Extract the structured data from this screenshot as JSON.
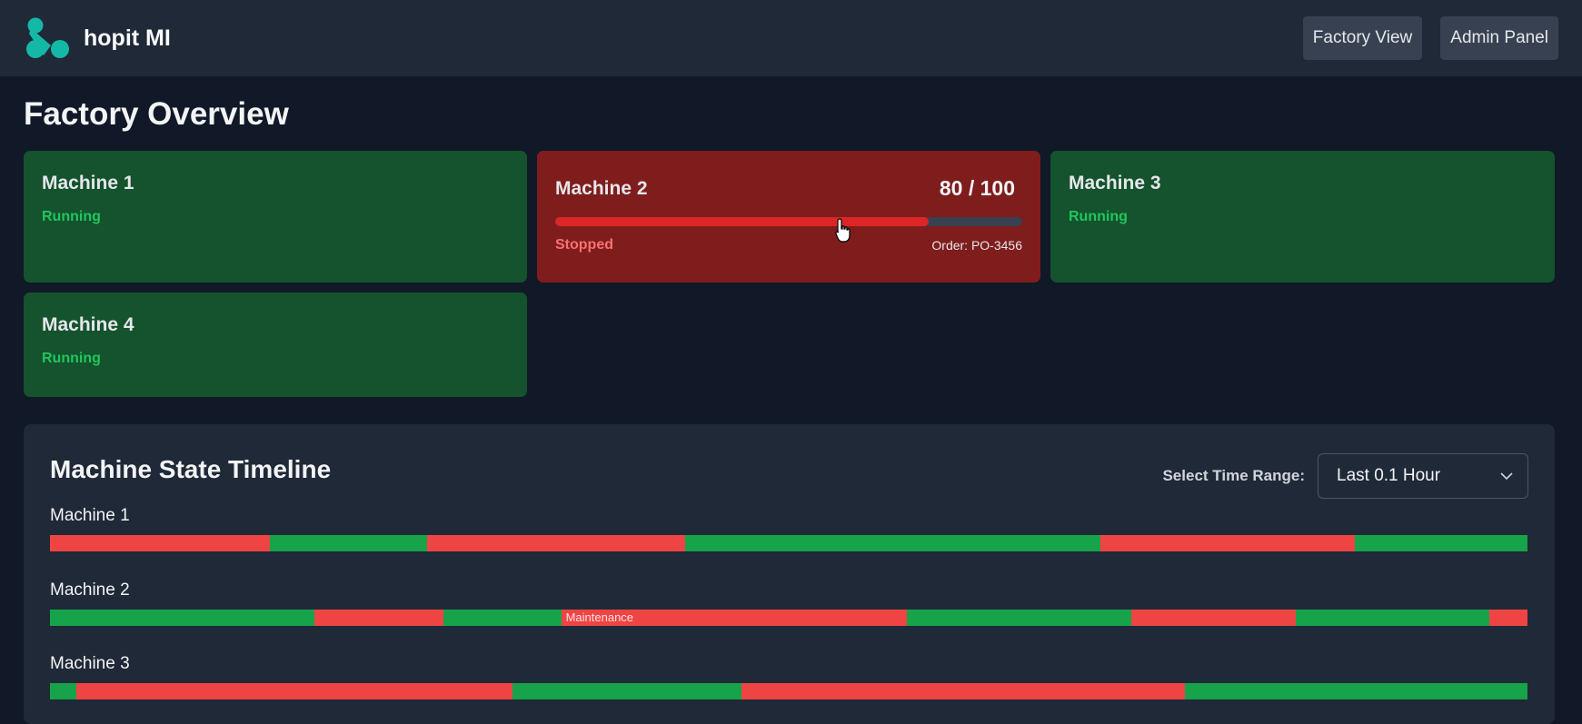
{
  "header": {
    "brand_name": "hopit MI",
    "logo_color": "#14b8a6",
    "nav": [
      {
        "label": "Factory View"
      },
      {
        "label": "Admin Panel"
      }
    ]
  },
  "page_title": "Factory Overview",
  "colors": {
    "running": "#14532d",
    "stopped": "#7f1d1d",
    "running_text": "#22c55e",
    "stopped_text": "#f87171",
    "segment_running": "#16a34a",
    "segment_stopped": "#ef4444"
  },
  "machines": [
    {
      "name": "Machine 1",
      "status": "Running"
    },
    {
      "name": "Machine 2",
      "status": "Stopped",
      "count": "80 / 100",
      "progress_pct": 80,
      "order": "Order: PO-3456"
    },
    {
      "name": "Machine 3",
      "status": "Running"
    },
    {
      "name": "Machine 4",
      "status": "Running"
    }
  ],
  "timeline": {
    "title": "Machine State Timeline",
    "range_label": "Select Time Range:",
    "range_value": "Last 0.1 Hour",
    "rows": [
      {
        "name": "Machine 1",
        "segments": [
          {
            "state": "stopped",
            "start": 0.0,
            "end": 0.149
          },
          {
            "state": "running",
            "start": 0.149,
            "end": 0.255
          },
          {
            "state": "stopped",
            "start": 0.255,
            "end": 0.43
          },
          {
            "state": "running",
            "start": 0.43,
            "end": 0.711
          },
          {
            "state": "stopped",
            "start": 0.711,
            "end": 0.883
          },
          {
            "state": "running",
            "start": 0.883,
            "end": 1.0
          }
        ]
      },
      {
        "name": "Machine 2",
        "segments": [
          {
            "state": "running",
            "start": 0.0,
            "end": 0.179
          },
          {
            "state": "stopped",
            "start": 0.179,
            "end": 0.266
          },
          {
            "state": "running",
            "start": 0.266,
            "end": 0.346
          },
          {
            "state": "stopped",
            "start": 0.346,
            "end": 0.58,
            "label": "Maintenance"
          },
          {
            "state": "running",
            "start": 0.58,
            "end": 0.732
          },
          {
            "state": "stopped",
            "start": 0.732,
            "end": 0.843
          },
          {
            "state": "running",
            "start": 0.843,
            "end": 0.974
          },
          {
            "state": "stopped",
            "start": 0.974,
            "end": 1.0
          }
        ]
      },
      {
        "name": "Machine 3",
        "segments": [
          {
            "state": "running",
            "start": 0.0,
            "end": 0.018
          },
          {
            "state": "stopped",
            "start": 0.018,
            "end": 0.313
          },
          {
            "state": "running",
            "start": 0.313,
            "end": 0.468
          },
          {
            "state": "stopped",
            "start": 0.468,
            "end": 0.768
          },
          {
            "state": "running",
            "start": 0.768,
            "end": 1.0
          }
        ]
      }
    ]
  }
}
